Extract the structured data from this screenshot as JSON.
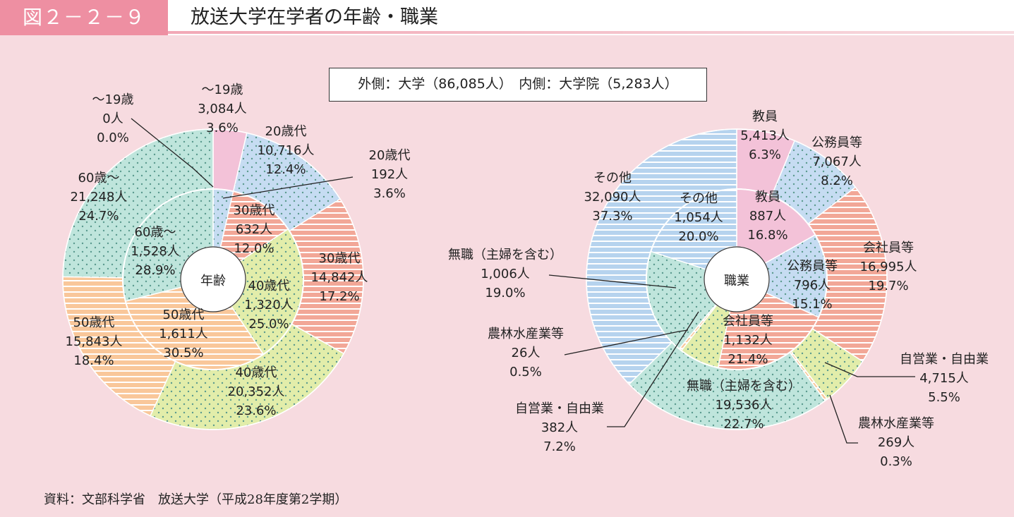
{
  "header": {
    "figure_label": "図２－２－９",
    "title": "放送大学在学者の年齢・職業"
  },
  "legend_text": "外側：大学（86,085人）　内側：大学院（5,283人）",
  "source": "資料：文部科学省　放送大学（平成28年度第2学期）",
  "colors": {
    "pink": "#f3c2d8",
    "blue": "#c6dcf2",
    "salmon": "#f2a797",
    "green": "#e2edaa",
    "orange": "#f9c79a",
    "teal": "#bfe5dc",
    "stripe_blue": "#b6d3ee",
    "accent": "#ee8fa2"
  },
  "chart_data": [
    {
      "type": "pie",
      "center_label": "年齢",
      "series": [
        {
          "name": "外側：大学",
          "total": "86,085人",
          "slices": [
            {
              "category": "～19歳",
              "count": "3,084人",
              "percent": 3.6,
              "pct_text": "3.6%",
              "fill": "pink",
              "pattern": "none"
            },
            {
              "category": "20歳代",
              "count": "10,716人",
              "percent": 12.4,
              "pct_text": "12.4%",
              "fill": "blue",
              "pattern": "dots"
            },
            {
              "category": "30歳代",
              "count": "14,842人",
              "percent": 17.2,
              "pct_text": "17.2%",
              "fill": "salmon",
              "pattern": "stripes"
            },
            {
              "category": "40歳代",
              "count": "20,352人",
              "percent": 23.6,
              "pct_text": "23.6%",
              "fill": "green",
              "pattern": "dots"
            },
            {
              "category": "50歳代",
              "count": "15,843人",
              "percent": 18.4,
              "pct_text": "18.4%",
              "fill": "orange",
              "pattern": "stripes"
            },
            {
              "category": "60歳～",
              "count": "21,248人",
              "percent": 24.7,
              "pct_text": "24.7%",
              "fill": "teal",
              "pattern": "dots"
            }
          ]
        },
        {
          "name": "内側：大学院",
          "total": "5,283人",
          "slices": [
            {
              "category": "～19歳",
              "count": "0人",
              "percent": 0.0,
              "pct_text": "0.0%",
              "fill": "pink",
              "pattern": "none"
            },
            {
              "category": "20歳代",
              "count": "192人",
              "percent": 3.6,
              "pct_text": "3.6%",
              "fill": "blue",
              "pattern": "dots"
            },
            {
              "category": "30歳代",
              "count": "632人",
              "percent": 12.0,
              "pct_text": "12.0%",
              "fill": "salmon",
              "pattern": "stripes"
            },
            {
              "category": "40歳代",
              "count": "1,320人",
              "percent": 25.0,
              "pct_text": "25.0%",
              "fill": "green",
              "pattern": "dots"
            },
            {
              "category": "50歳代",
              "count": "1,611人",
              "percent": 30.5,
              "pct_text": "30.5%",
              "fill": "orange",
              "pattern": "stripes"
            },
            {
              "category": "60歳～",
              "count": "1,528人",
              "percent": 28.9,
              "pct_text": "28.9%",
              "fill": "teal",
              "pattern": "dots"
            }
          ]
        }
      ]
    },
    {
      "type": "pie",
      "center_label": "職業",
      "series": [
        {
          "name": "外側：大学",
          "total": "86,085人",
          "slices": [
            {
              "category": "教員",
              "count": "5,413人",
              "percent": 6.3,
              "pct_text": "6.3%",
              "fill": "pink",
              "pattern": "none"
            },
            {
              "category": "公務員等",
              "count": "7,067人",
              "percent": 8.2,
              "pct_text": "8.2%",
              "fill": "blue",
              "pattern": "dots"
            },
            {
              "category": "会社員等",
              "count": "16,995人",
              "percent": 19.7,
              "pct_text": "19.7%",
              "fill": "salmon",
              "pattern": "stripes"
            },
            {
              "category": "自営業・自由業",
              "count": "4,715人",
              "percent": 5.5,
              "pct_text": "5.5%",
              "fill": "green",
              "pattern": "dots"
            },
            {
              "category": "農林水産業等",
              "count": "269人",
              "percent": 0.3,
              "pct_text": "0.3%",
              "fill": "orange",
              "pattern": "stripes"
            },
            {
              "category": "無職（主婦を含む）",
              "count": "19,536人",
              "percent": 22.7,
              "pct_text": "22.7%",
              "fill": "teal",
              "pattern": "dots"
            },
            {
              "category": "その他",
              "count": "32,090人",
              "percent": 37.3,
              "pct_text": "37.3%",
              "fill": "stripe_blue",
              "pattern": "stripes"
            }
          ]
        },
        {
          "name": "内側：大学院",
          "total": "5,283人",
          "slices": [
            {
              "category": "教員",
              "count": "887人",
              "percent": 16.8,
              "pct_text": "16.8%",
              "fill": "pink",
              "pattern": "none"
            },
            {
              "category": "公務員等",
              "count": "796人",
              "percent": 15.1,
              "pct_text": "15.1%",
              "fill": "blue",
              "pattern": "dots"
            },
            {
              "category": "会社員等",
              "count": "1,132人",
              "percent": 21.4,
              "pct_text": "21.4%",
              "fill": "salmon",
              "pattern": "stripes"
            },
            {
              "category": "自営業・自由業",
              "count": "382人",
              "percent": 7.2,
              "pct_text": "7.2%",
              "fill": "green",
              "pattern": "dots"
            },
            {
              "category": "農林水産業等",
              "count": "26人",
              "percent": 0.5,
              "pct_text": "0.5%",
              "fill": "orange",
              "pattern": "stripes"
            },
            {
              "category": "無職（主婦を含む）",
              "count": "1,006人",
              "percent": 19.0,
              "pct_text": "19.0%",
              "fill": "teal",
              "pattern": "dots"
            },
            {
              "category": "その他",
              "count": "1,054人",
              "percent": 20.0,
              "pct_text": "20.0%",
              "fill": "stripe_blue",
              "pattern": "stripes"
            }
          ]
        }
      ]
    }
  ]
}
